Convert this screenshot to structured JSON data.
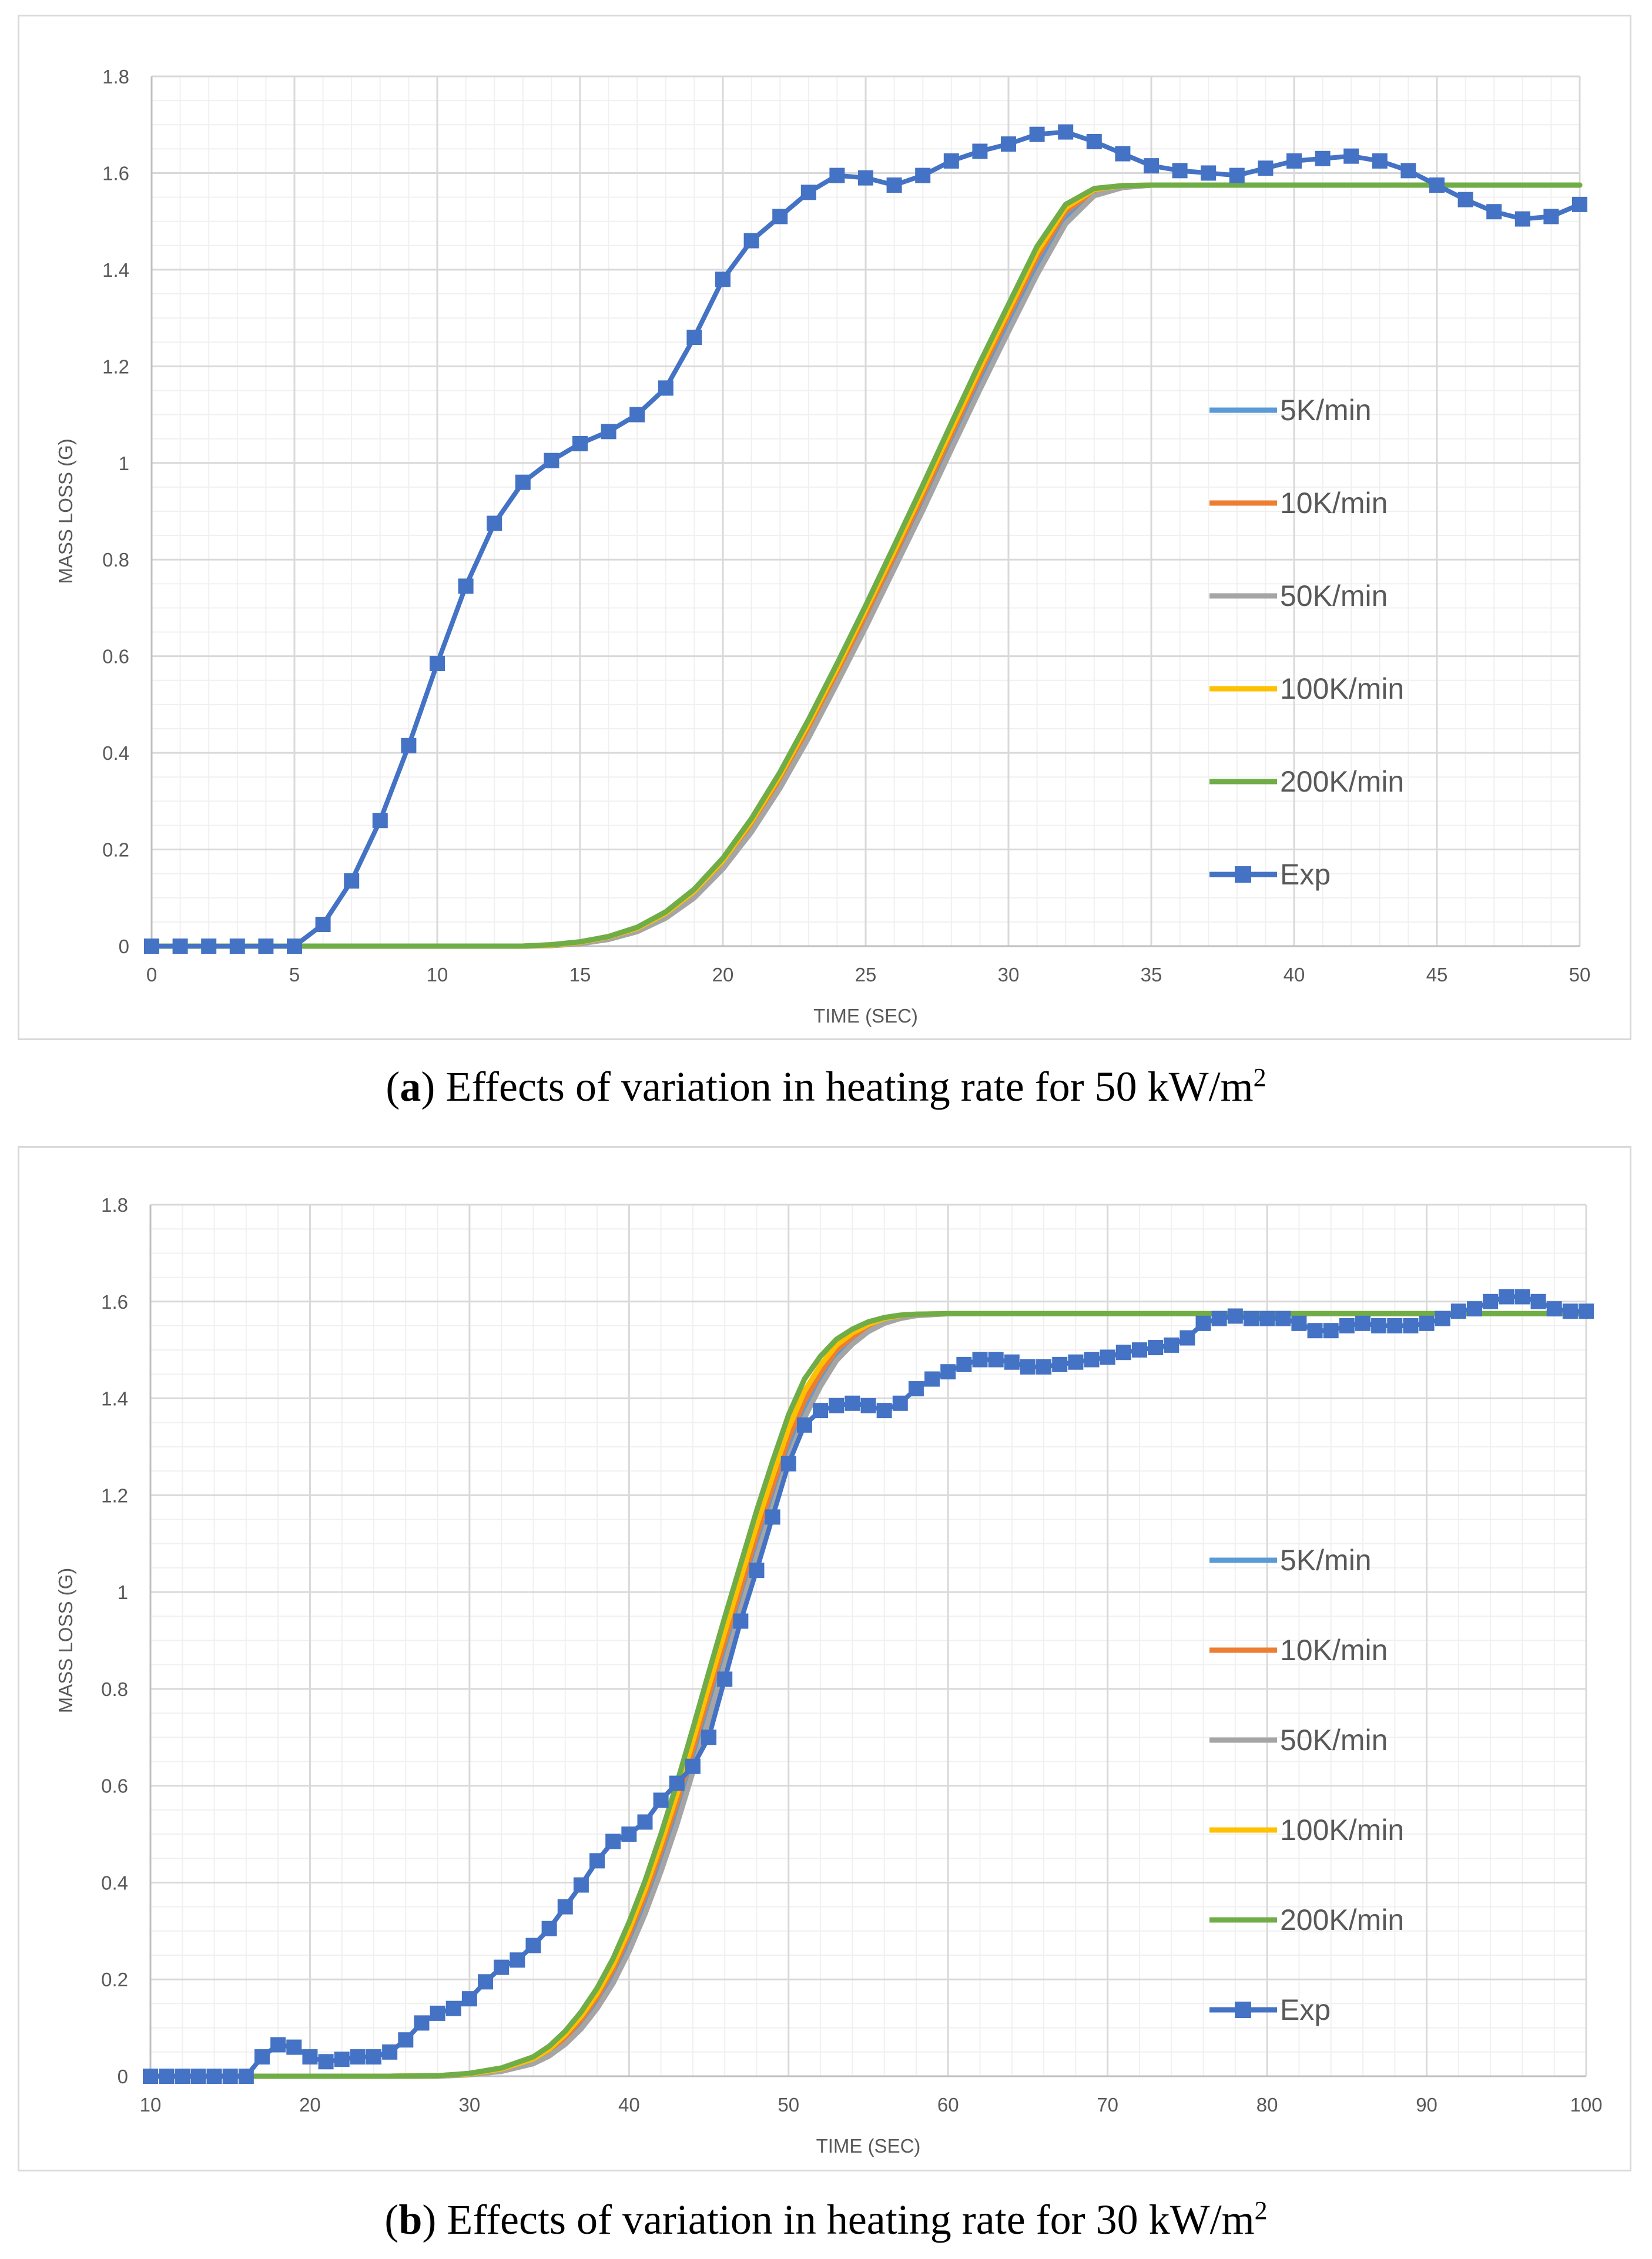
{
  "chart_data": [
    {
      "id": "a",
      "type": "line",
      "caption": {
        "letter": "a",
        "prefix": "(",
        "text": ") Effects of variation in heating rate for 50 kW/m",
        "sup": "2"
      },
      "xlabel": "TIME (SEC)",
      "ylabel": "MASS LOSS (G)",
      "xlim": [
        0,
        50
      ],
      "ylim": [
        0,
        1.8
      ],
      "xticks": [
        0,
        5,
        10,
        15,
        20,
        25,
        30,
        35,
        40,
        45,
        50
      ],
      "yticks": [
        0,
        0.2,
        0.4,
        0.6,
        0.8,
        1,
        1.2,
        1.4,
        1.6,
        1.8
      ],
      "xminor": 1,
      "yminor": 0.05,
      "legend_position": "right",
      "series": [
        {
          "name": "5K/min",
          "color": "#5b9bd5",
          "marker": false,
          "x": [
            0,
            5,
            10,
            13,
            14,
            15,
            16,
            17,
            18,
            19,
            20,
            21,
            22,
            23,
            24,
            25,
            26,
            27,
            28,
            29,
            30,
            31,
            32,
            33,
            34,
            35,
            40,
            45,
            50
          ],
          "y": [
            0,
            0,
            0,
            0,
            0.002,
            0.006,
            0.016,
            0.033,
            0.062,
            0.105,
            0.166,
            0.244,
            0.337,
            0.443,
            0.557,
            0.674,
            0.796,
            0.918,
            1.045,
            1.17,
            1.29,
            1.41,
            1.51,
            1.56,
            1.572,
            1.575,
            1.575,
            1.575,
            1.575
          ]
        },
        {
          "name": "10K/min",
          "color": "#ed7d31",
          "marker": false,
          "x": [
            0,
            5,
            10,
            13,
            14,
            15,
            16,
            17,
            18,
            19,
            20,
            21,
            22,
            23,
            24,
            25,
            26,
            27,
            28,
            29,
            30,
            31,
            32,
            33,
            34,
            35,
            40,
            45,
            50
          ],
          "y": [
            0,
            0,
            0,
            0,
            0.002,
            0.007,
            0.017,
            0.035,
            0.065,
            0.11,
            0.172,
            0.252,
            0.346,
            0.453,
            0.567,
            0.686,
            0.808,
            0.932,
            1.059,
            1.185,
            1.305,
            1.425,
            1.52,
            1.563,
            1.573,
            1.575,
            1.575,
            1.575,
            1.575
          ]
        },
        {
          "name": "50K/min",
          "color": "#a5a5a5",
          "marker": false,
          "x": [
            0,
            5,
            10,
            13,
            14,
            15,
            16,
            17,
            18,
            19,
            20,
            21,
            22,
            23,
            24,
            25,
            26,
            27,
            28,
            29,
            30,
            31,
            32,
            33,
            34,
            35,
            40,
            45,
            50
          ],
          "y": [
            0,
            0,
            0,
            0,
            0.001,
            0.005,
            0.014,
            0.03,
            0.058,
            0.1,
            0.16,
            0.236,
            0.327,
            0.431,
            0.544,
            0.66,
            0.781,
            0.902,
            1.028,
            1.152,
            1.272,
            1.39,
            1.495,
            1.553,
            1.57,
            1.575,
            1.575,
            1.575,
            1.575
          ]
        },
        {
          "name": "100K/min",
          "color": "#ffc000",
          "marker": false,
          "x": [
            0,
            5,
            10,
            13,
            14,
            15,
            16,
            17,
            18,
            19,
            20,
            21,
            22,
            23,
            24,
            25,
            26,
            27,
            28,
            29,
            30,
            31,
            32,
            33,
            34,
            35,
            40,
            45,
            50
          ],
          "y": [
            0,
            0,
            0,
            0,
            0.002,
            0.008,
            0.019,
            0.037,
            0.068,
            0.114,
            0.177,
            0.258,
            0.353,
            0.461,
            0.576,
            0.696,
            0.818,
            0.943,
            1.07,
            1.196,
            1.316,
            1.436,
            1.528,
            1.566,
            1.574,
            1.575,
            1.575,
            1.575,
            1.575
          ]
        },
        {
          "name": "200K/min",
          "color": "#70ad47",
          "marker": false,
          "x": [
            0,
            5,
            10,
            13,
            14,
            15,
            16,
            17,
            18,
            19,
            20,
            21,
            22,
            23,
            24,
            25,
            26,
            27,
            28,
            29,
            30,
            31,
            32,
            33,
            34,
            35,
            40,
            45,
            50
          ],
          "y": [
            0,
            0,
            0,
            0,
            0.003,
            0.009,
            0.02,
            0.039,
            0.071,
            0.118,
            0.182,
            0.264,
            0.36,
            0.469,
            0.585,
            0.705,
            0.829,
            0.954,
            1.082,
            1.208,
            1.328,
            1.448,
            1.535,
            1.568,
            1.574,
            1.575,
            1.575,
            1.575,
            1.575
          ]
        },
        {
          "name": "Exp",
          "color": "#4472c4",
          "marker": true,
          "x": [
            0,
            1,
            2,
            3,
            4,
            5,
            6,
            7,
            8,
            9,
            10,
            11,
            12,
            13,
            14,
            15,
            16,
            17,
            18,
            19,
            20,
            21,
            22,
            23,
            24,
            25,
            26,
            27,
            28,
            29,
            30,
            31,
            32,
            33,
            34,
            35,
            36,
            37,
            38,
            39,
            40,
            41,
            42,
            43,
            44,
            45,
            46,
            47,
            48,
            49,
            50
          ],
          "y": [
            0,
            0,
            0,
            0,
            0,
            0,
            0.045,
            0.135,
            0.26,
            0.415,
            0.585,
            0.745,
            0.875,
            0.96,
            1.005,
            1.04,
            1.065,
            1.1,
            1.155,
            1.26,
            1.38,
            1.46,
            1.51,
            1.56,
            1.595,
            1.59,
            1.575,
            1.595,
            1.625,
            1.645,
            1.66,
            1.68,
            1.685,
            1.665,
            1.64,
            1.615,
            1.605,
            1.6,
            1.595,
            1.61,
            1.625,
            1.63,
            1.635,
            1.625,
            1.605,
            1.575,
            1.545,
            1.52,
            1.505,
            1.51,
            1.535
          ]
        }
      ]
    },
    {
      "id": "b",
      "type": "line",
      "caption": {
        "letter": "b",
        "prefix": "(",
        "text": ") Effects of variation in heating rate for 30 kW/m",
        "sup": "2"
      },
      "xlabel": "TIME (SEC)",
      "ylabel": "MASS LOSS (G)",
      "xlim": [
        10,
        100
      ],
      "ylim": [
        0,
        1.8
      ],
      "xticks": [
        10,
        20,
        30,
        40,
        50,
        60,
        70,
        80,
        90,
        100
      ],
      "yticks": [
        0,
        0.2,
        0.4,
        0.6,
        0.8,
        1,
        1.2,
        1.4,
        1.6,
        1.8
      ],
      "xminor": 2,
      "yminor": 0.05,
      "legend_position": "right",
      "series": [
        {
          "name": "5K/min",
          "color": "#5b9bd5",
          "marker": false,
          "x": [
            10,
            20,
            25,
            28,
            30,
            32,
            34,
            35,
            36,
            37,
            38,
            39,
            40,
            41,
            42,
            43,
            44,
            45,
            46,
            47,
            48,
            49,
            50,
            51,
            52,
            53,
            54,
            55,
            56,
            57,
            58,
            60,
            70,
            80,
            90,
            100
          ],
          "y": [
            0,
            0,
            0,
            0.001,
            0.004,
            0.012,
            0.03,
            0.048,
            0.075,
            0.11,
            0.155,
            0.21,
            0.28,
            0.36,
            0.45,
            0.55,
            0.66,
            0.77,
            0.88,
            0.99,
            1.1,
            1.2,
            1.3,
            1.38,
            1.44,
            1.49,
            1.52,
            1.545,
            1.56,
            1.568,
            1.572,
            1.575,
            1.575,
            1.575,
            1.575,
            1.575
          ]
        },
        {
          "name": "10K/min",
          "color": "#ed7d31",
          "marker": false,
          "x": [
            10,
            20,
            25,
            28,
            30,
            32,
            34,
            35,
            36,
            37,
            38,
            39,
            40,
            41,
            42,
            43,
            44,
            45,
            46,
            47,
            48,
            49,
            50,
            51,
            52,
            53,
            54,
            55,
            56,
            57,
            58,
            60,
            70,
            80,
            90,
            100
          ],
          "y": [
            0,
            0,
            0,
            0.001,
            0.005,
            0.014,
            0.033,
            0.052,
            0.08,
            0.117,
            0.163,
            0.22,
            0.292,
            0.373,
            0.465,
            0.565,
            0.675,
            0.787,
            0.898,
            1.008,
            1.118,
            1.218,
            1.318,
            1.395,
            1.452,
            1.5,
            1.527,
            1.549,
            1.562,
            1.569,
            1.573,
            1.575,
            1.575,
            1.575,
            1.575,
            1.575
          ]
        },
        {
          "name": "50K/min",
          "color": "#a5a5a5",
          "marker": false,
          "x": [
            10,
            20,
            25,
            28,
            30,
            32,
            34,
            35,
            36,
            37,
            38,
            39,
            40,
            41,
            42,
            43,
            44,
            45,
            46,
            47,
            48,
            49,
            50,
            51,
            52,
            53,
            54,
            55,
            56,
            57,
            58,
            60,
            70,
            80,
            90,
            100
          ],
          "y": [
            0,
            0,
            0,
            0,
            0.003,
            0.01,
            0.026,
            0.042,
            0.066,
            0.098,
            0.14,
            0.192,
            0.258,
            0.335,
            0.423,
            0.52,
            0.628,
            0.738,
            0.85,
            0.962,
            1.072,
            1.174,
            1.276,
            1.36,
            1.425,
            1.478,
            1.512,
            1.538,
            1.555,
            1.565,
            1.571,
            1.575,
            1.575,
            1.575,
            1.575,
            1.575
          ]
        },
        {
          "name": "100K/min",
          "color": "#ffc000",
          "marker": false,
          "x": [
            10,
            20,
            25,
            28,
            30,
            32,
            34,
            35,
            36,
            37,
            38,
            39,
            40,
            41,
            42,
            43,
            44,
            45,
            46,
            47,
            48,
            49,
            50,
            51,
            52,
            53,
            54,
            55,
            56,
            57,
            58,
            60,
            70,
            80,
            90,
            100
          ],
          "y": [
            0,
            0,
            0,
            0.001,
            0.005,
            0.015,
            0.036,
            0.056,
            0.086,
            0.124,
            0.171,
            0.23,
            0.303,
            0.386,
            0.48,
            0.582,
            0.692,
            0.806,
            0.918,
            1.028,
            1.138,
            1.24,
            1.338,
            1.415,
            1.468,
            1.51,
            1.535,
            1.553,
            1.565,
            1.571,
            1.574,
            1.575,
            1.575,
            1.575,
            1.575,
            1.575
          ]
        },
        {
          "name": "200K/min",
          "color": "#70ad47",
          "marker": false,
          "x": [
            10,
            20,
            25,
            28,
            30,
            32,
            34,
            35,
            36,
            37,
            38,
            39,
            40,
            41,
            42,
            43,
            44,
            45,
            46,
            47,
            48,
            49,
            50,
            51,
            52,
            53,
            54,
            55,
            56,
            57,
            58,
            60,
            70,
            80,
            90,
            100
          ],
          "y": [
            0,
            0,
            0,
            0.001,
            0.006,
            0.017,
            0.04,
            0.062,
            0.093,
            0.133,
            0.182,
            0.243,
            0.318,
            0.403,
            0.5,
            0.605,
            0.718,
            0.834,
            0.948,
            1.058,
            1.168,
            1.27,
            1.366,
            1.44,
            1.487,
            1.522,
            1.543,
            1.558,
            1.567,
            1.572,
            1.574,
            1.575,
            1.575,
            1.575,
            1.575,
            1.575
          ]
        },
        {
          "name": "Exp",
          "color": "#4472c4",
          "marker": true,
          "x": [
            10,
            11,
            12,
            13,
            14,
            15,
            16,
            17,
            18,
            19,
            20,
            21,
            22,
            23,
            24,
            25,
            26,
            27,
            28,
            29,
            30,
            31,
            32,
            33,
            34,
            35,
            36,
            37,
            38,
            39,
            40,
            41,
            42,
            43,
            44,
            45,
            46,
            47,
            48,
            49,
            50,
            51,
            52,
            53,
            54,
            55,
            56,
            57,
            58,
            59,
            60,
            61,
            62,
            63,
            64,
            65,
            66,
            67,
            68,
            69,
            70,
            71,
            72,
            73,
            74,
            75,
            76,
            77,
            78,
            79,
            80,
            81,
            82,
            83,
            84,
            85,
            86,
            87,
            88,
            89,
            90,
            91,
            92,
            93,
            94,
            95,
            96,
            97,
            98,
            99,
            100
          ],
          "y": [
            0,
            0,
            0,
            0,
            0,
            0,
            0,
            0.04,
            0.065,
            0.06,
            0.04,
            0.03,
            0.035,
            0.04,
            0.04,
            0.05,
            0.075,
            0.11,
            0.13,
            0.14,
            0.16,
            0.195,
            0.225,
            0.24,
            0.27,
            0.305,
            0.35,
            0.395,
            0.445,
            0.485,
            0.5,
            0.525,
            0.57,
            0.605,
            0.64,
            0.7,
            0.82,
            0.94,
            1.045,
            1.155,
            1.265,
            1.345,
            1.375,
            1.385,
            1.39,
            1.385,
            1.375,
            1.39,
            1.42,
            1.44,
            1.455,
            1.47,
            1.48,
            1.48,
            1.475,
            1.465,
            1.465,
            1.47,
            1.475,
            1.48,
            1.485,
            1.495,
            1.5,
            1.505,
            1.51,
            1.525,
            1.555,
            1.565,
            1.57,
            1.565,
            1.565,
            1.565,
            1.555,
            1.54,
            1.54,
            1.55,
            1.555,
            1.55,
            1.55,
            1.55,
            1.555,
            1.565,
            1.58,
            1.585,
            1.6,
            1.61,
            1.61,
            1.6,
            1.585,
            1.58,
            1.58
          ]
        }
      ]
    }
  ]
}
